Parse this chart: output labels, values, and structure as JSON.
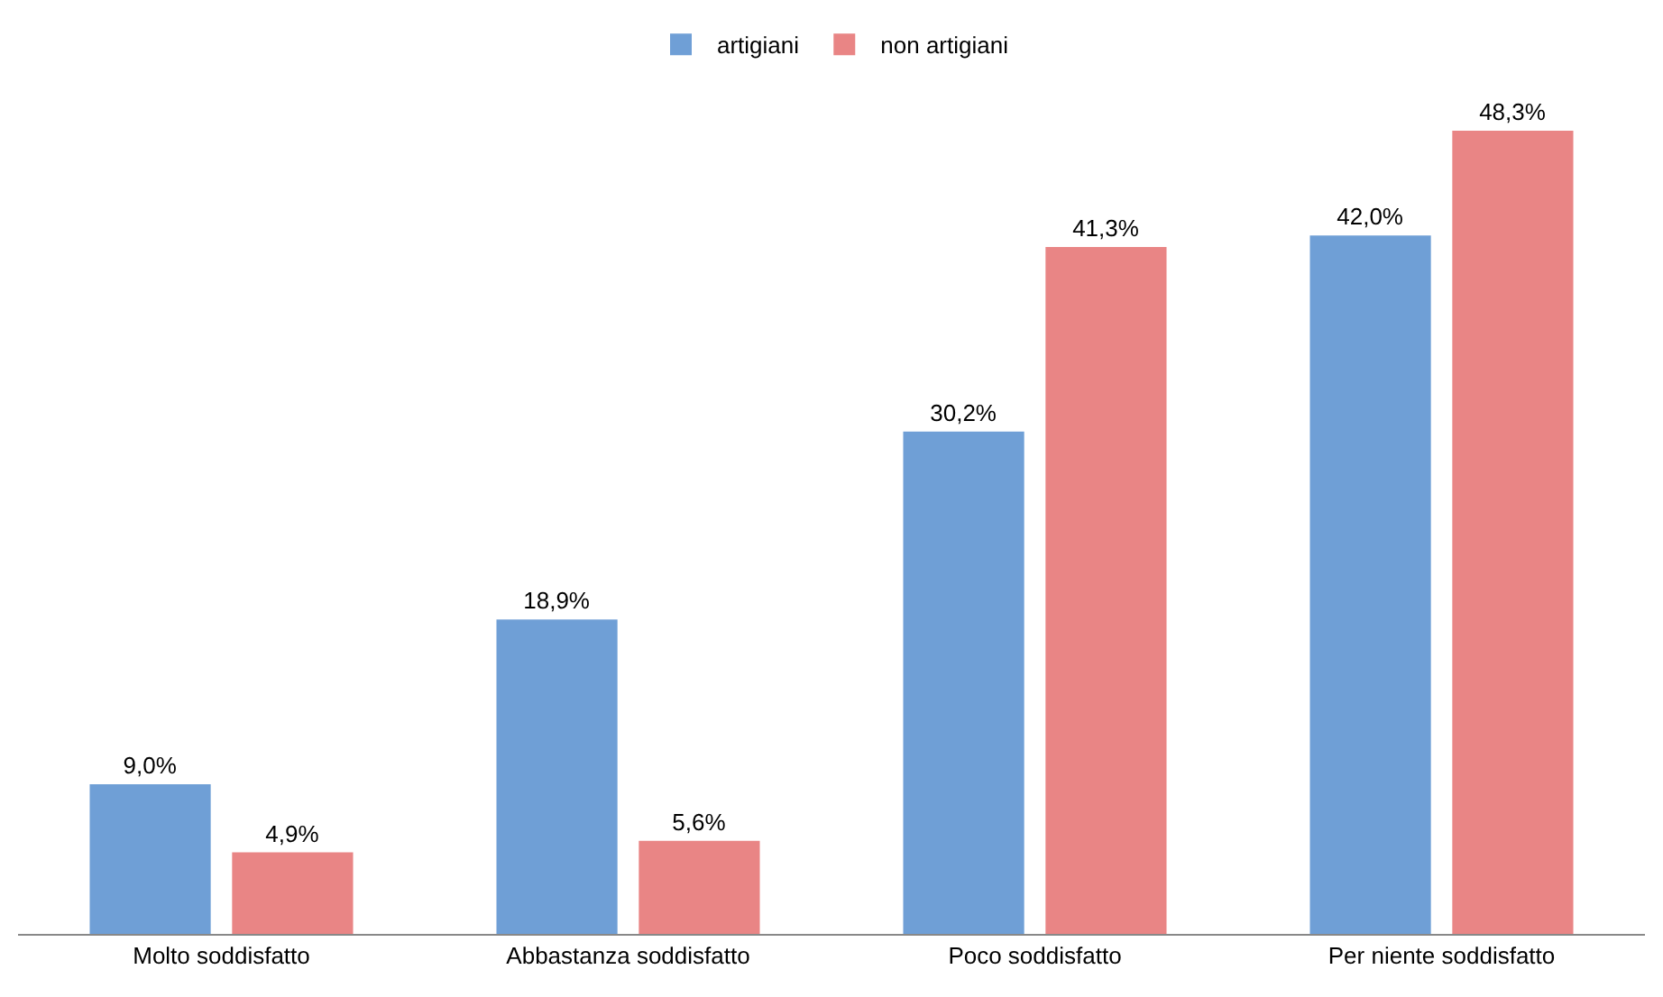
{
  "chart_data": {
    "type": "bar",
    "categories": [
      "Molto soddisfatto",
      "Abbastanza soddisfatto",
      "Poco soddisfatto",
      "Per niente soddisfatto"
    ],
    "series": [
      {
        "name": "artigiani",
        "color": "#6f9fd6",
        "values": [
          9.0,
          18.9,
          30.2,
          42.0
        ],
        "value_labels": [
          "9,0%",
          "18,9%",
          "30,2%",
          "42,0%"
        ]
      },
      {
        "name": "non artigiani",
        "color": "#e98585",
        "values": [
          4.9,
          5.6,
          41.3,
          48.3
        ],
        "value_labels": [
          "4,9%",
          "5,6%",
          "41,3%",
          "48,3%"
        ]
      }
    ],
    "legend": "top"
  }
}
